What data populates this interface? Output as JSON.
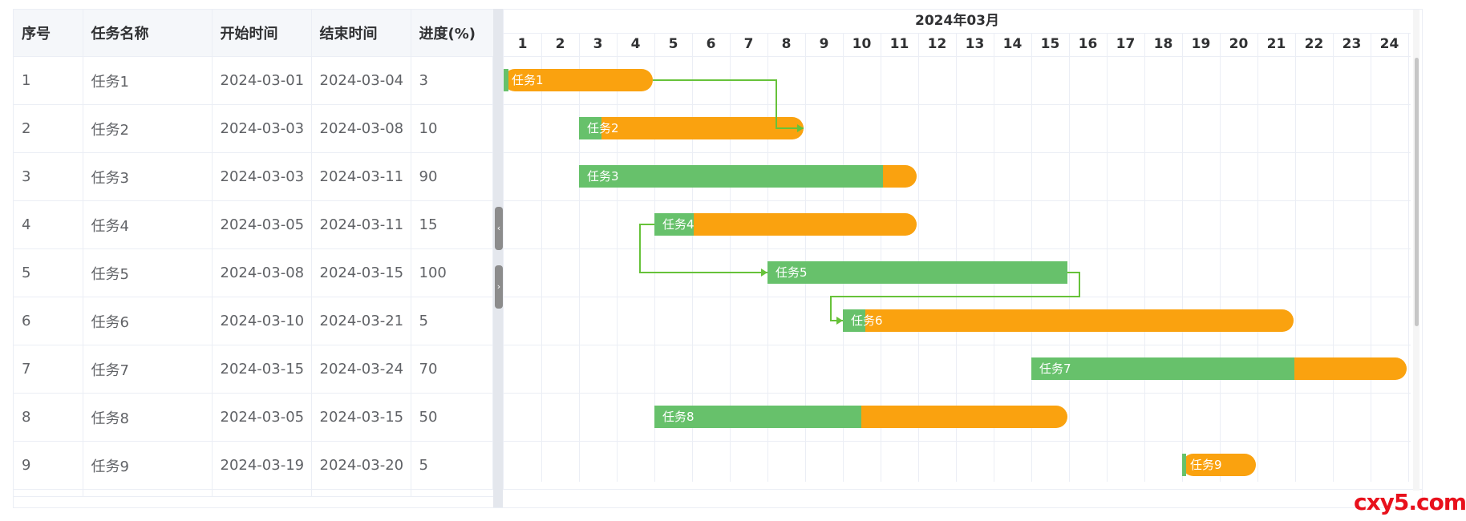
{
  "table": {
    "headers": [
      "序号",
      "任务名称",
      "开始时间",
      "结束时间",
      "进度(%)"
    ],
    "rows": [
      {
        "id": "1",
        "name": "任务1",
        "start": "2024-03-01",
        "end": "2024-03-04",
        "progress": "3"
      },
      {
        "id": "2",
        "name": "任务2",
        "start": "2024-03-03",
        "end": "2024-03-08",
        "progress": "10"
      },
      {
        "id": "3",
        "name": "任务3",
        "start": "2024-03-03",
        "end": "2024-03-11",
        "progress": "90"
      },
      {
        "id": "4",
        "name": "任务4",
        "start": "2024-03-05",
        "end": "2024-03-11",
        "progress": "15"
      },
      {
        "id": "5",
        "name": "任务5",
        "start": "2024-03-08",
        "end": "2024-03-15",
        "progress": "100"
      },
      {
        "id": "6",
        "name": "任务6",
        "start": "2024-03-10",
        "end": "2024-03-21",
        "progress": "5"
      },
      {
        "id": "7",
        "name": "任务7",
        "start": "2024-03-15",
        "end": "2024-03-24",
        "progress": "70"
      },
      {
        "id": "8",
        "name": "任务8",
        "start": "2024-03-05",
        "end": "2024-03-15",
        "progress": "50"
      },
      {
        "id": "9",
        "name": "任务9",
        "start": "2024-03-19",
        "end": "2024-03-20",
        "progress": "5"
      }
    ]
  },
  "gantt": {
    "month_label": "2024年03月",
    "days": [
      "1",
      "2",
      "3",
      "4",
      "5",
      "6",
      "7",
      "8",
      "9",
      "10",
      "11",
      "12",
      "13",
      "14",
      "15",
      "16",
      "17",
      "18",
      "19",
      "20",
      "21",
      "22",
      "23",
      "24"
    ],
    "dependencies": [
      {
        "from": "任务1",
        "to": "任务2"
      },
      {
        "from": "任务4",
        "to": "任务5"
      },
      {
        "from": "任务5",
        "to": "任务6"
      }
    ]
  },
  "splitter": {
    "collapse_left_glyph": "‹",
    "collapse_right_glyph": "›"
  },
  "watermark": "cxy5.com",
  "colors": {
    "done": "#67c16b",
    "remaining": "#faa20f",
    "link": "#67c23a",
    "grid": "#ebeef5",
    "header_bg": "#f5f7fa",
    "watermark": "#e8111c"
  }
}
